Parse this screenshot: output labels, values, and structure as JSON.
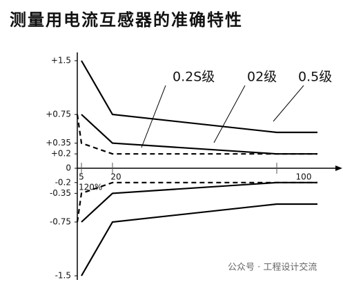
{
  "chart_data": {
    "type": "line",
    "title": "测量用电流互感器的准确特性",
    "categories": [
      null,
      "5",
      "20",
      "100",
      null
    ],
    "series": [
      {
        "name": "0.2S级",
        "color": "#000000",
        "dashed": true,
        "values": [
          0.75,
          0.35,
          0.2,
          0.2,
          0.2
        ],
        "neg_values": [
          -0.75,
          -0.35,
          -0.2,
          -0.2,
          -0.2
        ]
      },
      {
        "name": "02级",
        "color": "#000000",
        "dashed": false,
        "values": [
          null,
          0.75,
          0.35,
          0.2,
          0.2
        ],
        "neg_values": [
          null,
          -0.75,
          -0.35,
          -0.2,
          -0.2
        ]
      },
      {
        "name": "0.5级",
        "color": "#000000",
        "dashed": false,
        "values": [
          null,
          1.5,
          0.75,
          0.5,
          0.5
        ],
        "neg_values": [
          null,
          -1.5,
          -0.75,
          -0.5,
          -0.5
        ]
      }
    ],
    "ylim": [
      -1.5,
      1.5
    ],
    "yticks": [
      {
        "value": 1.5,
        "label": "+1.5"
      },
      {
        "value": 0.75,
        "label": "+0.75"
      },
      {
        "value": 0.35,
        "label": "+0.35"
      },
      {
        "value": 0.2,
        "label": "+0.2"
      },
      0,
      -0.2,
      -0.35,
      -0.75,
      -1.5
    ],
    "annotations": [
      "120%"
    ],
    "watermark": "公众号 · 工程设计交流"
  }
}
